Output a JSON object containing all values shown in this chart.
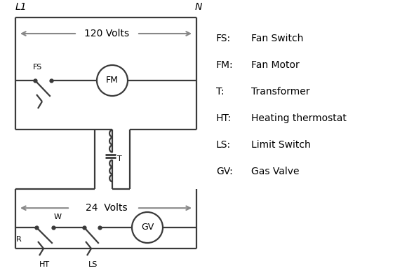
{
  "bg_color": "#ffffff",
  "line_color": "#3a3a3a",
  "arrow_color": "#888888",
  "text_color": "#000000",
  "legend_items": [
    [
      "FS:",
      "Fan Switch"
    ],
    [
      "FM:",
      "Fan Motor"
    ],
    [
      "T:",
      "Transformer"
    ],
    [
      "HT:",
      "Heating thermostat"
    ],
    [
      "LS:",
      "Limit Switch"
    ],
    [
      "GV:",
      "Gas Valve"
    ]
  ],
  "L1_label": "L1",
  "N_label": "N",
  "volts120": "120 Volts",
  "volts24": "24  Volts"
}
